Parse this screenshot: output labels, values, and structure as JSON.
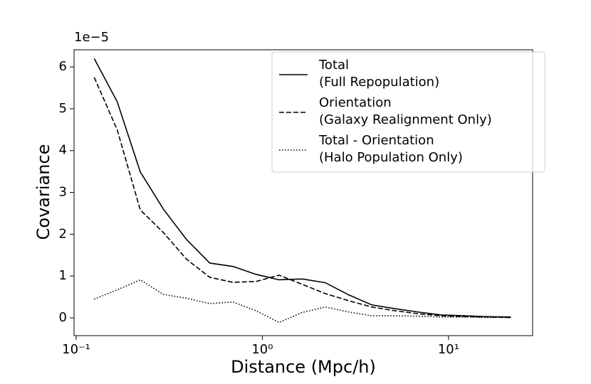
{
  "chart_data": {
    "type": "line",
    "xlabel": "Distance (Mpc/h)",
    "ylabel": "Covariance",
    "y_offset_label": "1e−5",
    "xscale": "log",
    "x": [
      0.125,
      0.166,
      0.221,
      0.294,
      0.392,
      0.522,
      0.695,
      0.925,
      1.23,
      1.64,
      2.18,
      2.91,
      3.87,
      5.15,
      6.86,
      9.14,
      12.2,
      16.2,
      21.6
    ],
    "series": [
      {
        "name": "Total",
        "description": "(Full Repopulation)",
        "color": "#000000",
        "linestyle": "solid",
        "values": [
          6.2,
          5.17,
          3.49,
          2.6,
          1.87,
          1.31,
          1.23,
          1.04,
          0.91,
          0.93,
          0.84,
          0.55,
          0.31,
          0.22,
          0.14,
          0.07,
          0.05,
          0.03,
          0.02
        ]
      },
      {
        "name": "Orientation",
        "description": "(Galaxy Realignment Only)",
        "color": "#000000",
        "linestyle": "dashed",
        "values": [
          5.75,
          4.5,
          2.58,
          2.04,
          1.4,
          0.97,
          0.85,
          0.87,
          1.02,
          0.8,
          0.58,
          0.41,
          0.26,
          0.17,
          0.1,
          0.05,
          0.03,
          0.02,
          0.01
        ]
      },
      {
        "name": "Total - Orientation",
        "description": "(Halo Population Only)",
        "color": "#000000",
        "linestyle": "dotted",
        "values": [
          0.45,
          0.67,
          0.91,
          0.56,
          0.47,
          0.34,
          0.38,
          0.17,
          -0.11,
          0.13,
          0.26,
          0.14,
          0.05,
          0.05,
          0.04,
          0.02,
          0.02,
          0.01,
          0.01
        ]
      }
    ],
    "xlim": [
      0.0974,
      28.3
    ],
    "xticks": [
      {
        "value": 0.1,
        "label": "10⁻¹"
      },
      {
        "value": 1,
        "label": "10⁰"
      },
      {
        "value": 10,
        "label": "10¹"
      }
    ],
    "ylim": [
      -0.425,
      6.41
    ],
    "yticks": [
      0,
      1,
      2,
      3,
      4,
      5,
      6
    ],
    "grid": false,
    "legend": "upper right"
  }
}
